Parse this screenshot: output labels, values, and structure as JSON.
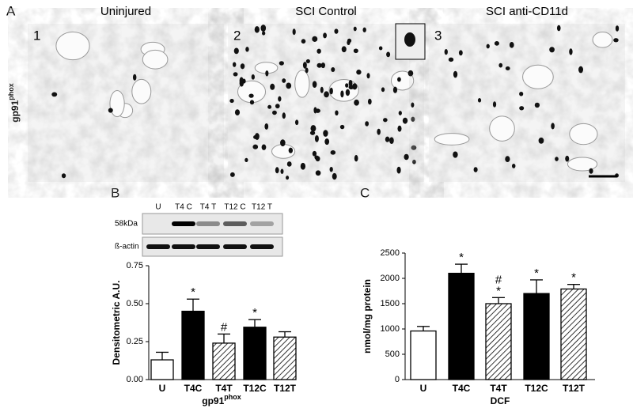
{
  "figure": {
    "panel_a": "A",
    "panel_b": "B",
    "panel_c": "C",
    "row_label": "gp91",
    "row_label_sup": "phox",
    "images": [
      {
        "number": "1",
        "title": "Uninjured"
      },
      {
        "number": "2",
        "title": "SCI Control"
      },
      {
        "number": "3",
        "title": "SCI anti-CD11d"
      }
    ],
    "blot": {
      "lanes": [
        "U",
        "T4 C",
        "T4 T",
        "T12 C",
        "T12 T"
      ],
      "rows": [
        "58kDa",
        "ß-actin"
      ]
    }
  },
  "chart_data": [
    {
      "type": "bar",
      "y_label": "Densitometric A.U.",
      "x_label": "gp91",
      "x_label_sup": "phox",
      "categories": [
        "U",
        "T4C",
        "T4T",
        "T12C",
        "T12T"
      ],
      "values": [
        0.13,
        0.45,
        0.24,
        0.345,
        0.28
      ],
      "errors": [
        0.05,
        0.08,
        0.06,
        0.05,
        0.035
      ],
      "fills": [
        "white",
        "black",
        "hatch",
        "black",
        "hatch"
      ],
      "annotations": [
        {
          "index": 1,
          "texts": [
            "*"
          ]
        },
        {
          "index": 2,
          "texts": [
            "#"
          ]
        },
        {
          "index": 3,
          "texts": [
            "*"
          ]
        }
      ],
      "ylim": [
        0,
        0.75
      ],
      "yticks": [
        {
          "value": 0,
          "label": "0.00"
        },
        {
          "value": 0.25,
          "label": "0.25"
        },
        {
          "value": 0.5,
          "label": "0.50"
        },
        {
          "value": 0.75,
          "label": "0.75"
        }
      ]
    },
    {
      "type": "bar",
      "y_label": "nmol/mg protein",
      "x_label": "DCF",
      "categories": [
        "U",
        "T4C",
        "T4T",
        "T12C",
        "T12T"
      ],
      "values": [
        960,
        2100,
        1500,
        1700,
        1790
      ],
      "errors": [
        90,
        180,
        120,
        270,
        90
      ],
      "fills": [
        "white",
        "black",
        "hatch",
        "black",
        "hatch"
      ],
      "annotations": [
        {
          "index": 1,
          "texts": [
            "*"
          ]
        },
        {
          "index": 2,
          "texts": [
            "#",
            "*"
          ]
        },
        {
          "index": 3,
          "texts": [
            "*"
          ]
        },
        {
          "index": 4,
          "texts": [
            "*"
          ]
        }
      ],
      "ylim": [
        0,
        2500
      ],
      "yticks": [
        0,
        500,
        1000,
        1500,
        2000,
        2500
      ]
    }
  ]
}
